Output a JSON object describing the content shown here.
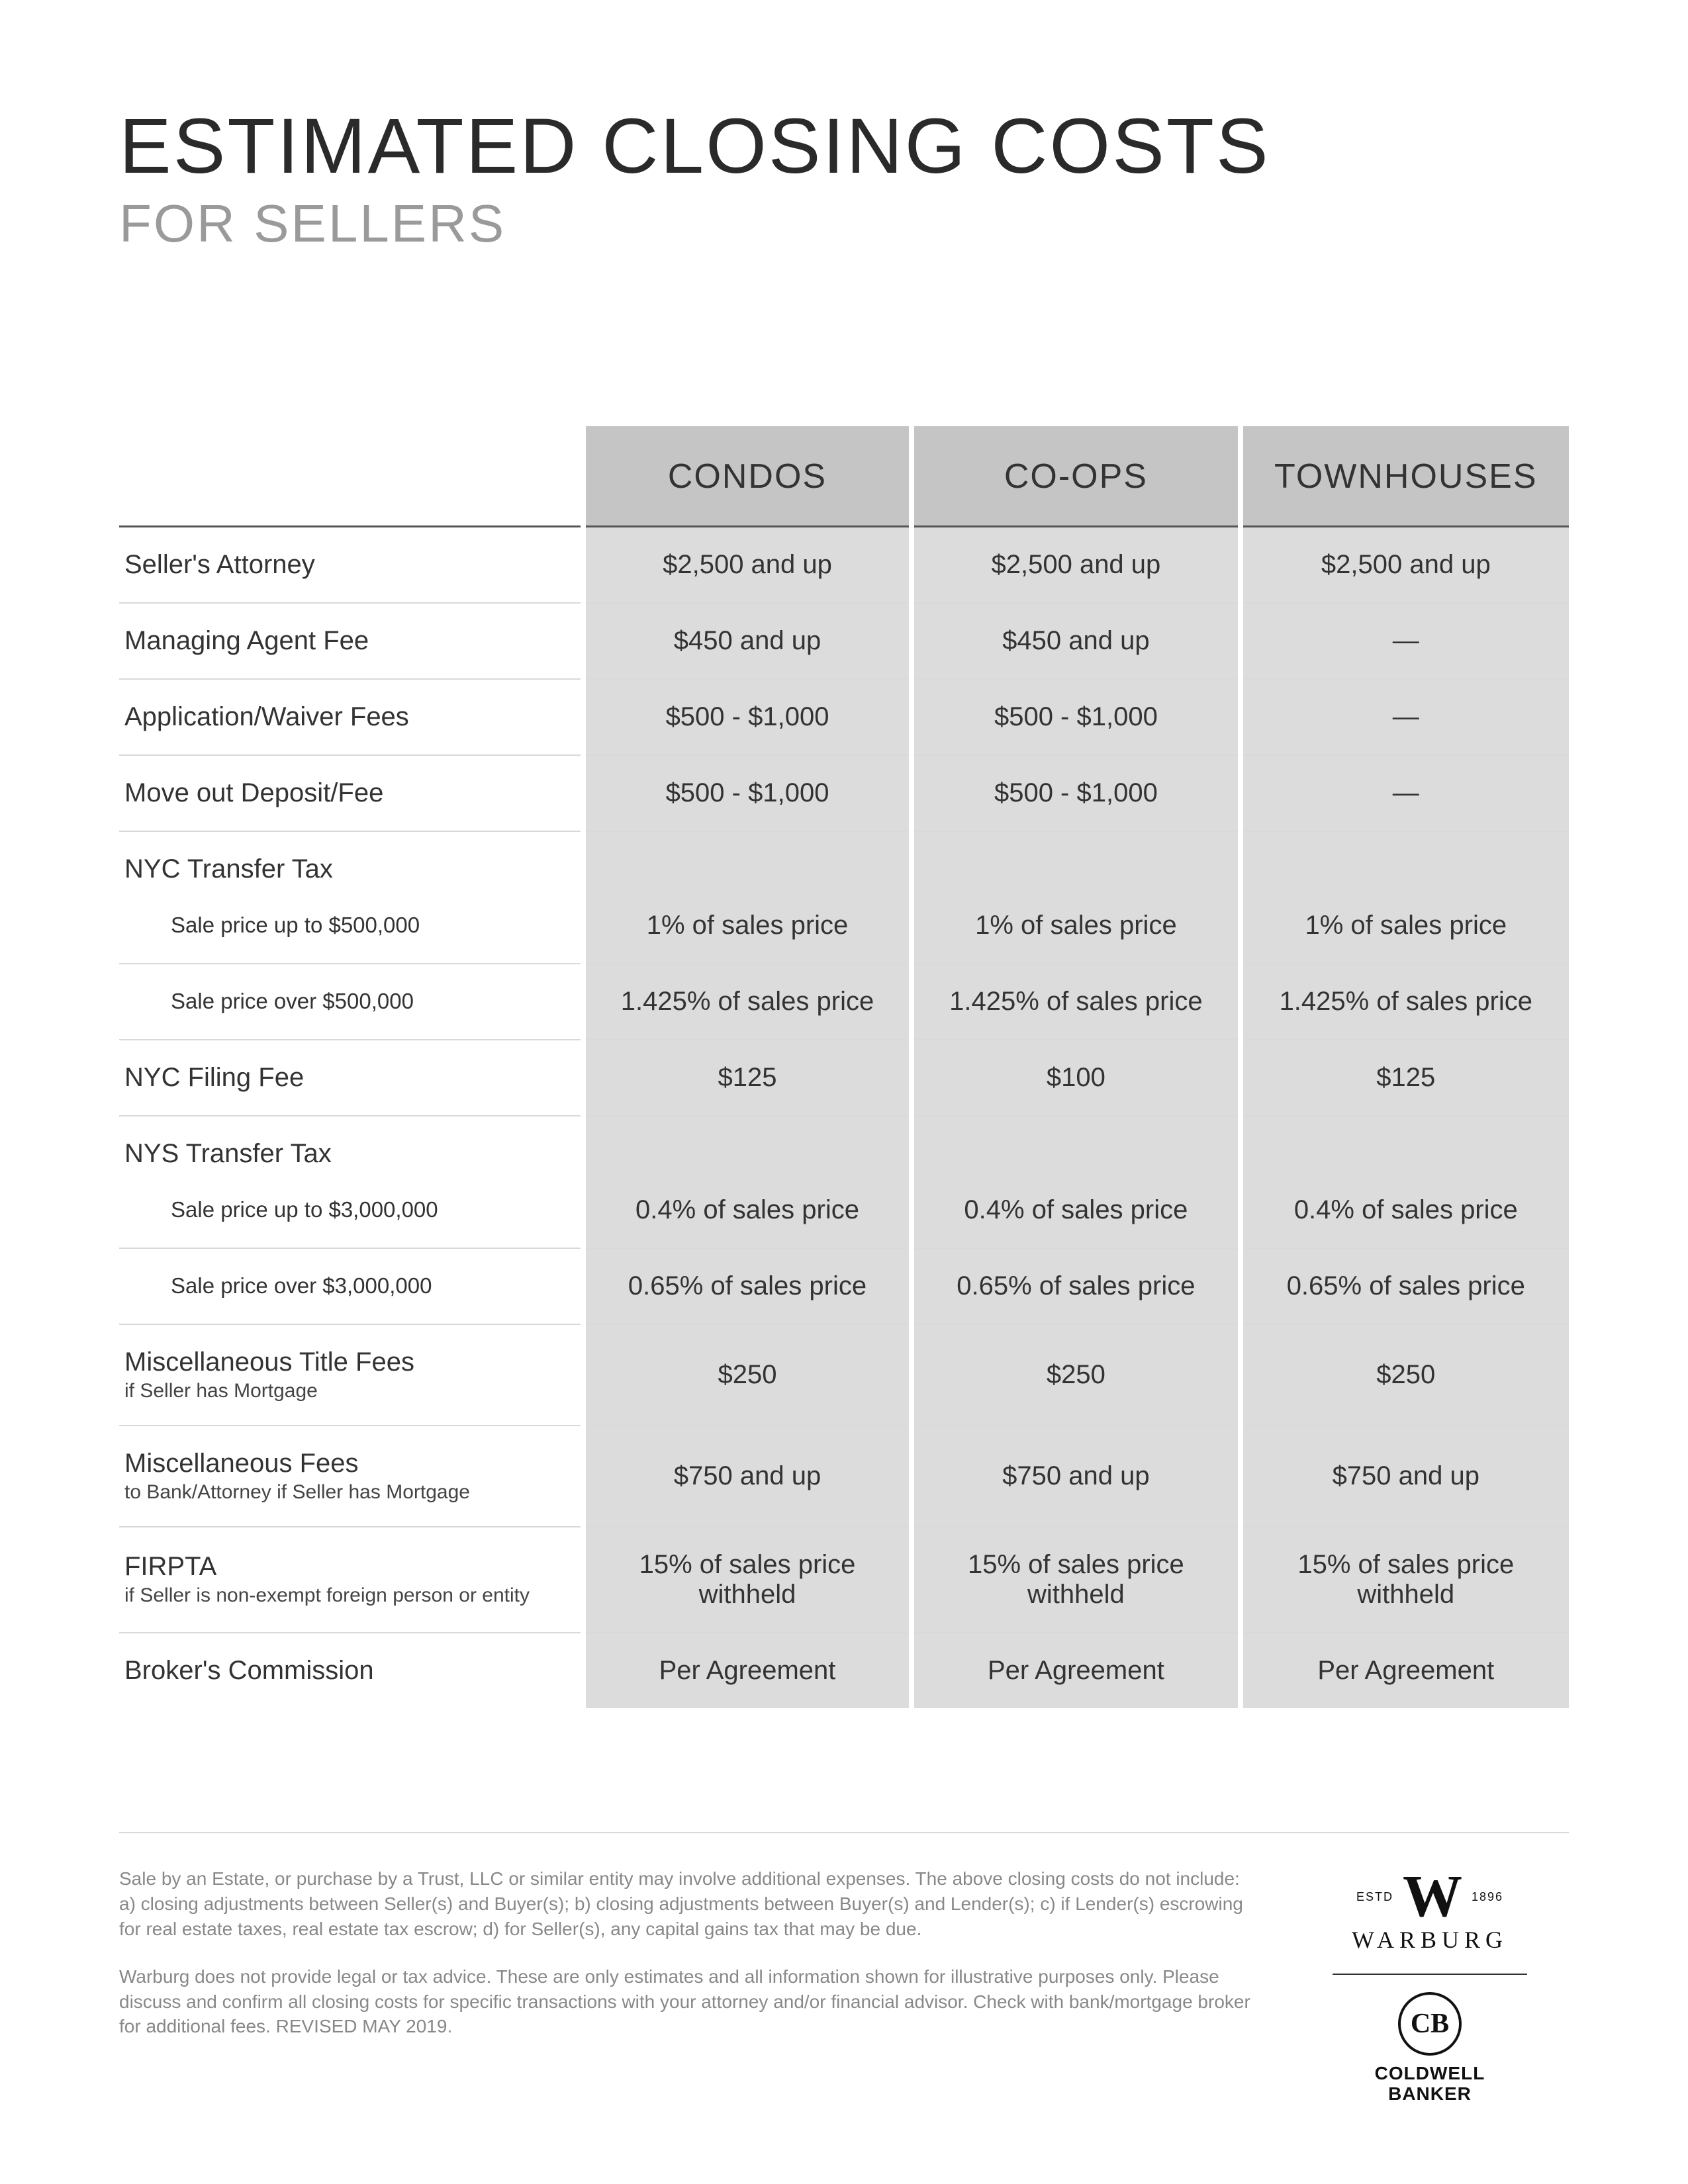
{
  "title": "ESTIMATED CLOSING COSTS",
  "subtitle": "FOR SELLERS",
  "columns": [
    "CONDOS",
    "CO-OPS",
    "TOWNHOUSES"
  ],
  "colors": {
    "page_bg": "#ffffff",
    "header_bg": "#c5c5c5",
    "cell_bg": "#dcdcdc",
    "border": "#d9d9d9",
    "text": "#333333",
    "subtitle_text": "#9a9a9a",
    "disclaimer_text": "#888888"
  },
  "rows": [
    {
      "label": "Seller's Attorney",
      "values": [
        "$2,500 and up",
        "$2,500 and up",
        "$2,500 and up"
      ]
    },
    {
      "label": "Managing Agent Fee",
      "values": [
        "$450 and up",
        "$450 and up",
        "—"
      ]
    },
    {
      "label": "Application/Waiver Fees",
      "values": [
        "$500 - $1,000",
        "$500 - $1,000",
        "—"
      ]
    },
    {
      "label": "Move out Deposit/Fee",
      "values": [
        "$500 - $1,000",
        "$500 - $1,000",
        "—"
      ]
    },
    {
      "label": "NYC Transfer Tax",
      "header": true
    },
    {
      "label": "Sale price up to $500,000",
      "indent": true,
      "values": [
        "1% of sales price",
        "1% of sales price",
        "1% of sales price"
      ]
    },
    {
      "label": "Sale price over $500,000",
      "indent": true,
      "values": [
        "1.425% of sales price",
        "1.425% of sales price",
        "1.425% of sales price"
      ]
    },
    {
      "label": "NYC Filing Fee",
      "values": [
        "$125",
        "$100",
        "$125"
      ]
    },
    {
      "label": "NYS Transfer Tax",
      "header": true
    },
    {
      "label": "Sale price up to $3,000,000",
      "indent": true,
      "values": [
        "0.4% of sales price",
        "0.4% of sales price",
        "0.4% of sales price"
      ]
    },
    {
      "label": "Sale price over $3,000,000",
      "indent": true,
      "values": [
        "0.65% of sales price",
        "0.65% of sales price",
        "0.65% of sales price"
      ]
    },
    {
      "label": "Miscellaneous Title Fees",
      "sub": "if Seller has Mortgage",
      "values": [
        "$250",
        "$250",
        "$250"
      ]
    },
    {
      "label": "Miscellaneous Fees",
      "sub": "to Bank/Attorney if Seller has Mortgage",
      "values": [
        "$750 and up",
        "$750 and up",
        "$750 and up"
      ]
    },
    {
      "label": "FIRPTA",
      "sub": "if Seller is non-exempt foreign person or entity",
      "values": [
        "15% of sales price withheld",
        "15% of sales price withheld",
        "15% of sales price withheld"
      ]
    },
    {
      "label": "Broker's Commission",
      "values": [
        "Per Agreement",
        "Per Agreement",
        "Per Agreement"
      ]
    }
  ],
  "disclaimer": {
    "p1": "Sale by an Estate, or purchase by a Trust, LLC or similar entity may involve additional expenses. The above closing costs do not include: a) closing adjustments between Seller(s) and Buyer(s); b) closing adjustments between Buyer(s) and Lender(s); c) if Lender(s) escrowing for real estate  taxes, real estate tax escrow; d) for Seller(s), any capital gains tax that may be due.",
    "p2": "Warburg does not provide legal or tax advice. These are only estimates and all information shown for illustrative purposes only. Please discuss and confirm all closing costs for specific transactions with your attorney and/or financial advisor. Check with bank/mortgage broker for additional fees.  REVISED MAY 2019."
  },
  "logos": {
    "warburg_estd": "ESTD",
    "warburg_year": "1896",
    "warburg_name": "WARBURG",
    "cb_mono": "CB",
    "cb_name_l1": "COLDWELL",
    "cb_name_l2": "BANKER"
  }
}
